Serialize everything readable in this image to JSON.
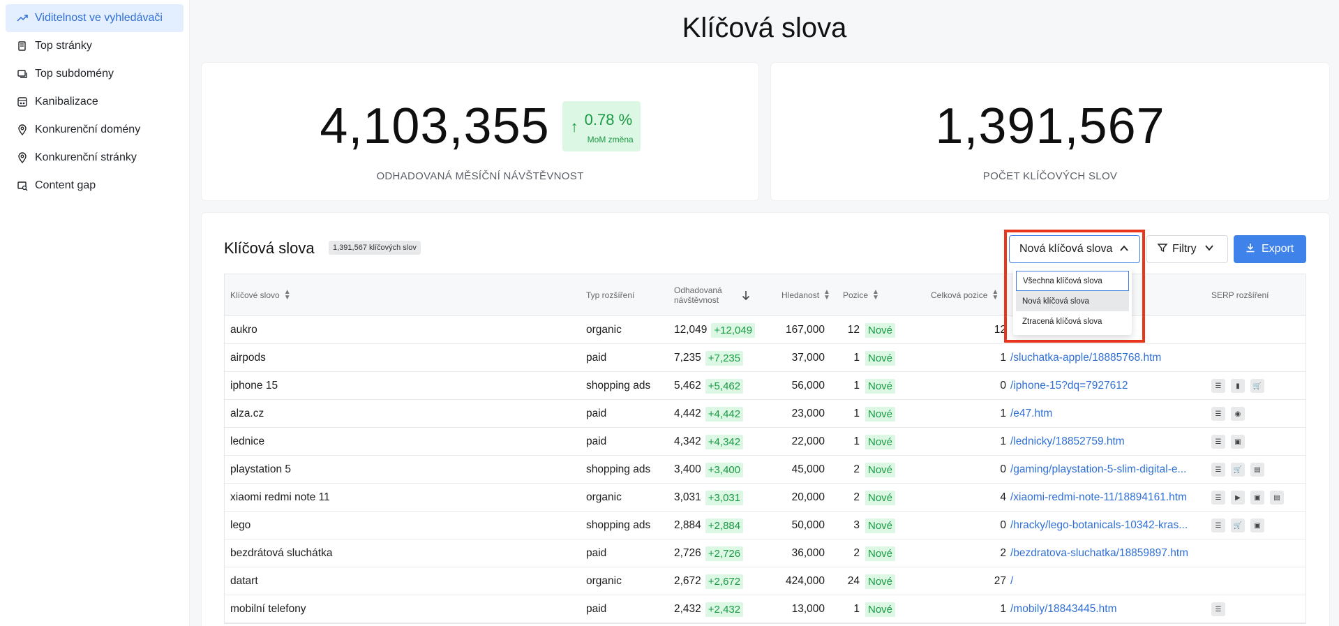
{
  "sidebar": {
    "items": [
      {
        "label": "Viditelnost ve vyhledávači",
        "icon": "trend-up-icon",
        "active": true
      },
      {
        "label": "Top stránky",
        "icon": "pages-icon"
      },
      {
        "label": "Top subdomény",
        "icon": "subdomains-icon"
      },
      {
        "label": "Kanibalizace",
        "icon": "cannibalization-icon"
      },
      {
        "label": "Konkurenční domény",
        "icon": "location-pin-icon"
      },
      {
        "label": "Konkurenční stránky",
        "icon": "location-pin-icon"
      },
      {
        "label": "Content gap",
        "icon": "content-gap-icon"
      }
    ]
  },
  "page_title": "Klíčová slova",
  "metrics": {
    "traffic": {
      "value": "4,103,355",
      "change_pct": "0.78 %",
      "change_label": "MoM změna",
      "label": "ODHADOVANÁ MĚSÍČNÍ NÁVŠTĚVNOST"
    },
    "keywords": {
      "value": "1,391,567",
      "label": "POČET KLÍČOVÝCH SLOV"
    }
  },
  "table_card": {
    "title": "Klíčová slova",
    "count_badge": "1,391,567 klíčových slov",
    "select_value": "Nová klíčová slova",
    "filter_label": "Filtry",
    "export_label": "Export",
    "dropdown_options": [
      "Všechna klíčová slova",
      "Nová klíčová slova",
      "Ztracená klíčová slova"
    ]
  },
  "columns": {
    "keyword": "Klíčové slovo",
    "type": "Typ rozšíření",
    "traffic_1": "Odhadovaná",
    "traffic_2": "návštěvnost",
    "volume": "Hledanost",
    "position": "Pozice",
    "total_position": "Celková pozice",
    "serp": "SERP rozšíření"
  },
  "rows": [
    {
      "keyword": "aukro",
      "type": "organic",
      "traffic": "12,049",
      "delta": "+12,049",
      "volume": "167,000",
      "position": "12",
      "status": "Nové",
      "total": "12",
      "url": "",
      "serp": []
    },
    {
      "keyword": "airpods",
      "type": "paid",
      "traffic": "7,235",
      "delta": "+7,235",
      "volume": "37,000",
      "position": "1",
      "status": "Nové",
      "total": "1",
      "url": "/sluchatka-apple/18885768.htm",
      "serp": []
    },
    {
      "keyword": "iphone 15",
      "type": "shopping ads",
      "traffic": "5,462",
      "delta": "+5,462",
      "volume": "56,000",
      "position": "1",
      "status": "Nové",
      "total": "0",
      "url": "/iphone-15?dq=7927612",
      "serp": [
        "snippet-icon",
        "book-icon",
        "cart-icon"
      ]
    },
    {
      "keyword": "alza.cz",
      "type": "paid",
      "traffic": "4,442",
      "delta": "+4,442",
      "volume": "23,000",
      "position": "1",
      "status": "Nové",
      "total": "1",
      "url": "/e47.htm",
      "serp": [
        "snippet-icon",
        "pin-icon"
      ]
    },
    {
      "keyword": "lednice",
      "type": "paid",
      "traffic": "4,342",
      "delta": "+4,342",
      "volume": "22,000",
      "position": "1",
      "status": "Nové",
      "total": "1",
      "url": "/lednicky/18852759.htm",
      "serp": [
        "snippet-icon",
        "image-icon"
      ]
    },
    {
      "keyword": "playstation 5",
      "type": "shopping ads",
      "traffic": "3,400",
      "delta": "+3,400",
      "volume": "45,000",
      "position": "2",
      "status": "Nové",
      "total": "0",
      "url": "/gaming/playstation-5-slim-digital-e...",
      "serp": [
        "snippet-icon",
        "cart-icon",
        "news-icon"
      ]
    },
    {
      "keyword": "xiaomi redmi note 11",
      "type": "organic",
      "traffic": "3,031",
      "delta": "+3,031",
      "volume": "20,000",
      "position": "2",
      "status": "Nové",
      "total": "4",
      "url": "/xiaomi-redmi-note-11/18894161.htm",
      "serp": [
        "snippet-icon",
        "video-icon",
        "image-icon",
        "news-icon"
      ]
    },
    {
      "keyword": "lego",
      "type": "shopping ads",
      "traffic": "2,884",
      "delta": "+2,884",
      "volume": "50,000",
      "position": "3",
      "status": "Nové",
      "total": "0",
      "url": "/hracky/lego-botanicals-10342-kras...",
      "serp": [
        "snippet-icon",
        "cart-icon",
        "image-icon"
      ]
    },
    {
      "keyword": "bezdrátová sluchátka",
      "type": "paid",
      "traffic": "2,726",
      "delta": "+2,726",
      "volume": "36,000",
      "position": "2",
      "status": "Nové",
      "total": "2",
      "url": "/bezdratova-sluchatka/18859897.htm",
      "serp": []
    },
    {
      "keyword": "datart",
      "type": "organic",
      "traffic": "2,672",
      "delta": "+2,672",
      "volume": "424,000",
      "position": "24",
      "status": "Nové",
      "total": "27",
      "url": "/",
      "serp": []
    },
    {
      "keyword": "mobilní telefony",
      "type": "paid",
      "traffic": "2,432",
      "delta": "+2,432",
      "volume": "13,000",
      "position": "1",
      "status": "Nové",
      "total": "1",
      "url": "/mobily/18843445.htm",
      "serp": [
        "snippet-icon"
      ]
    }
  ]
}
